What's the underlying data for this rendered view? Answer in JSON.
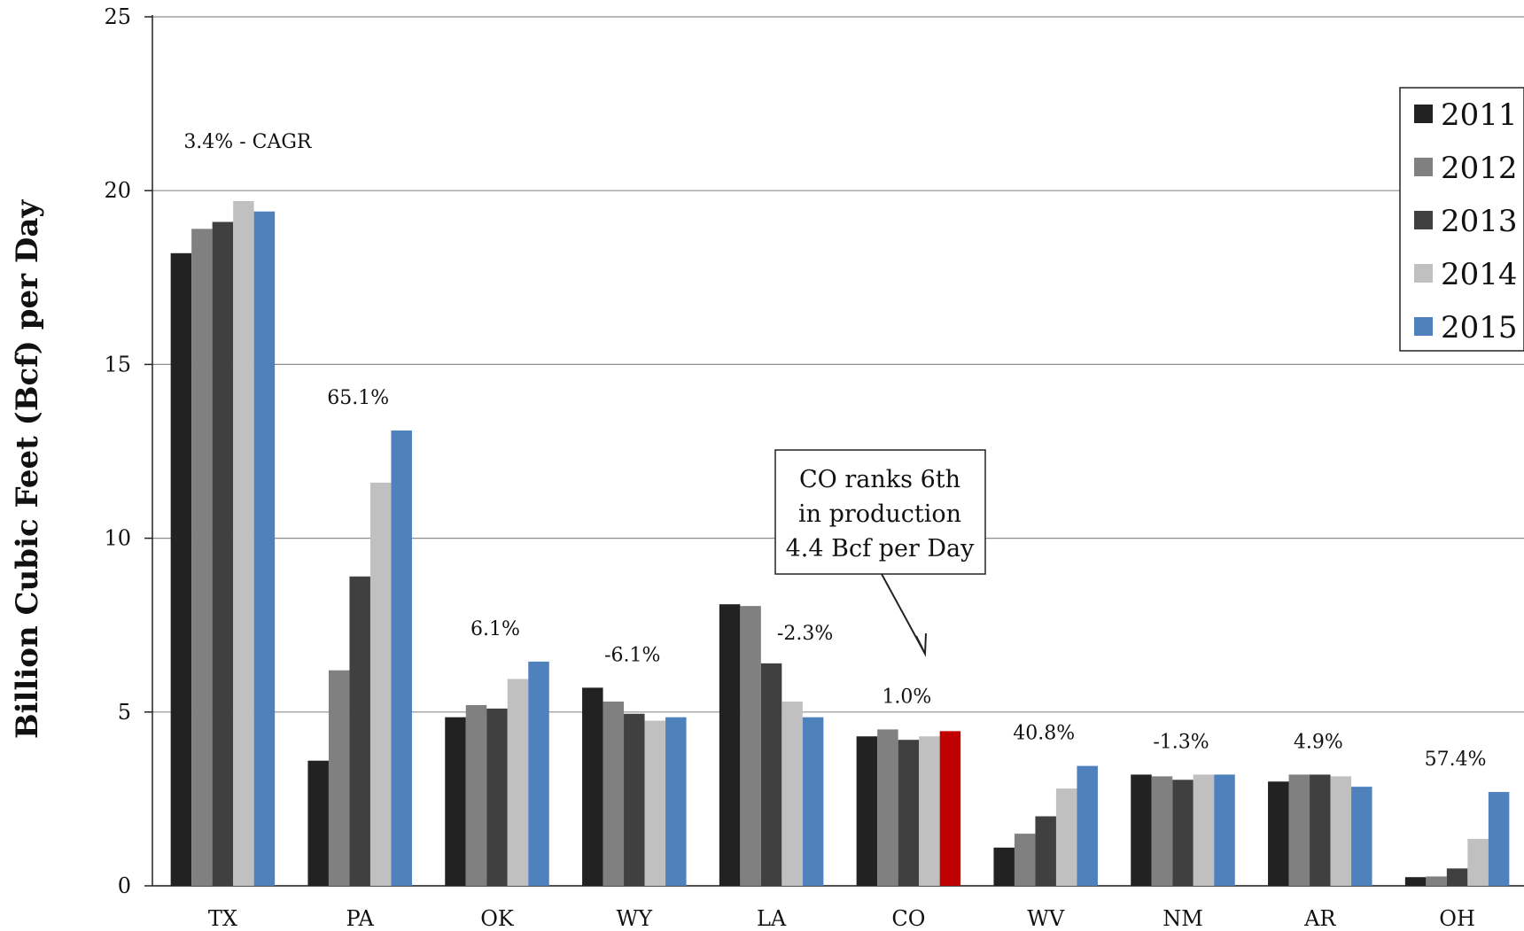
{
  "chart_data": {
    "type": "bar",
    "ylabel": "Billion Cubic Feet (Bcf) per Day",
    "xlabel": "",
    "ylim": [
      0,
      25
    ],
    "yticks": [
      "0",
      "5",
      "10",
      "15",
      "20",
      "25"
    ],
    "grid": "horizontal",
    "legend_position": "right",
    "categories": [
      "TX",
      "PA",
      "OK",
      "WY",
      "LA",
      "CO",
      "WV",
      "NM",
      "AR",
      "OH"
    ],
    "series": [
      {
        "name": "2011",
        "color": "#222222",
        "values": [
          18.2,
          3.6,
          4.85,
          5.7,
          8.1,
          4.3,
          1.1,
          3.2,
          3.0,
          0.25
        ]
      },
      {
        "name": "2012",
        "color": "#808080",
        "values": [
          18.9,
          6.2,
          5.2,
          5.3,
          8.05,
          4.5,
          1.5,
          3.15,
          3.2,
          0.27
        ]
      },
      {
        "name": "2013",
        "color": "#404040",
        "values": [
          19.1,
          8.9,
          5.1,
          4.95,
          6.4,
          4.2,
          2.0,
          3.05,
          3.2,
          0.5
        ]
      },
      {
        "name": "2014",
        "color": "#c0c0c0",
        "values": [
          19.7,
          11.6,
          5.95,
          4.75,
          5.3,
          4.3,
          2.8,
          3.2,
          3.15,
          1.35
        ]
      },
      {
        "name": "2015",
        "color": "#4f81bd",
        "values": [
          19.4,
          13.1,
          6.45,
          4.85,
          4.85,
          4.45,
          3.45,
          3.2,
          2.85,
          2.7
        ]
      }
    ],
    "highlight": {
      "category": "CO",
      "series": "2015",
      "color": "#c00000"
    },
    "growth_labels": [
      "3.4% - CAGR",
      "65.1%",
      "6.1%",
      "-6.1%",
      "-2.3%",
      "1.0%",
      "40.8%",
      "-1.3%",
      "4.9%",
      "57.4%"
    ],
    "callout": {
      "lines": [
        "CO ranks 6th",
        "in production",
        "4.4 Bcf per Day"
      ],
      "points_to": "CO"
    }
  }
}
